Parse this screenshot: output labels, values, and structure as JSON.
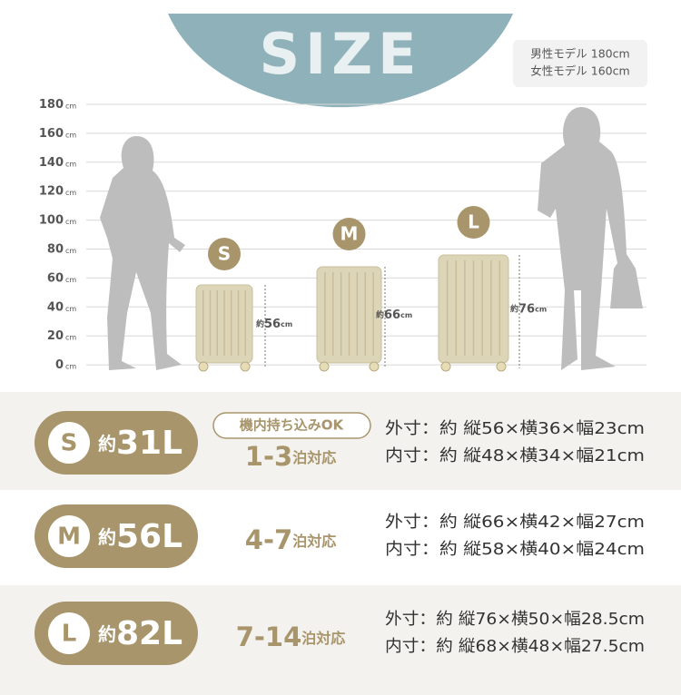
{
  "header": {
    "title": "SIZE",
    "models": [
      "男性モデル 180cm",
      "女性モデル 160cm"
    ]
  },
  "scale": {
    "ticks": [
      {
        "num": "180",
        "unit": "cm"
      },
      {
        "num": "160",
        "unit": "cm"
      },
      {
        "num": "140",
        "unit": "cm"
      },
      {
        "num": "120",
        "unit": "cm"
      },
      {
        "num": "100",
        "unit": "cm"
      },
      {
        "num": "80",
        "unit": "cm"
      },
      {
        "num": "60",
        "unit": "cm"
      },
      {
        "num": "40",
        "unit": "cm"
      },
      {
        "num": "20",
        "unit": "cm"
      },
      {
        "num": "0",
        "unit": "cm"
      }
    ]
  },
  "suitcases": [
    {
      "letter": "S",
      "prefix": "約",
      "height": "56",
      "unit": "cm"
    },
    {
      "letter": "M",
      "prefix": "約",
      "height": "66",
      "unit": "cm"
    },
    {
      "letter": "L",
      "prefix": "約",
      "height": "76",
      "unit": "cm"
    }
  ],
  "rows": [
    {
      "letter": "S",
      "prefix": "約",
      "capacity": "31L",
      "badge": "機内持ち込みOK",
      "nights": "1-3",
      "nights_suffix": "泊対応",
      "outer": "外寸：約 縦56×横36×幅23cm",
      "inner": "内寸：約 縦48×横34×幅21cm"
    },
    {
      "letter": "M",
      "prefix": "約",
      "capacity": "56L",
      "nights": "4-7",
      "nights_suffix": "泊対応",
      "outer": "外寸：約 縦66×横42×幅27cm",
      "inner": "内寸：約 縦58×横40×幅24cm"
    },
    {
      "letter": "L",
      "prefix": "約",
      "capacity": "82L",
      "nights": "7-14",
      "nights_suffix": "泊対応",
      "outer": "外寸：約 縦76×横50×幅28.5cm",
      "inner": "内寸：約 縦68×横48×幅27.5cm"
    }
  ]
}
